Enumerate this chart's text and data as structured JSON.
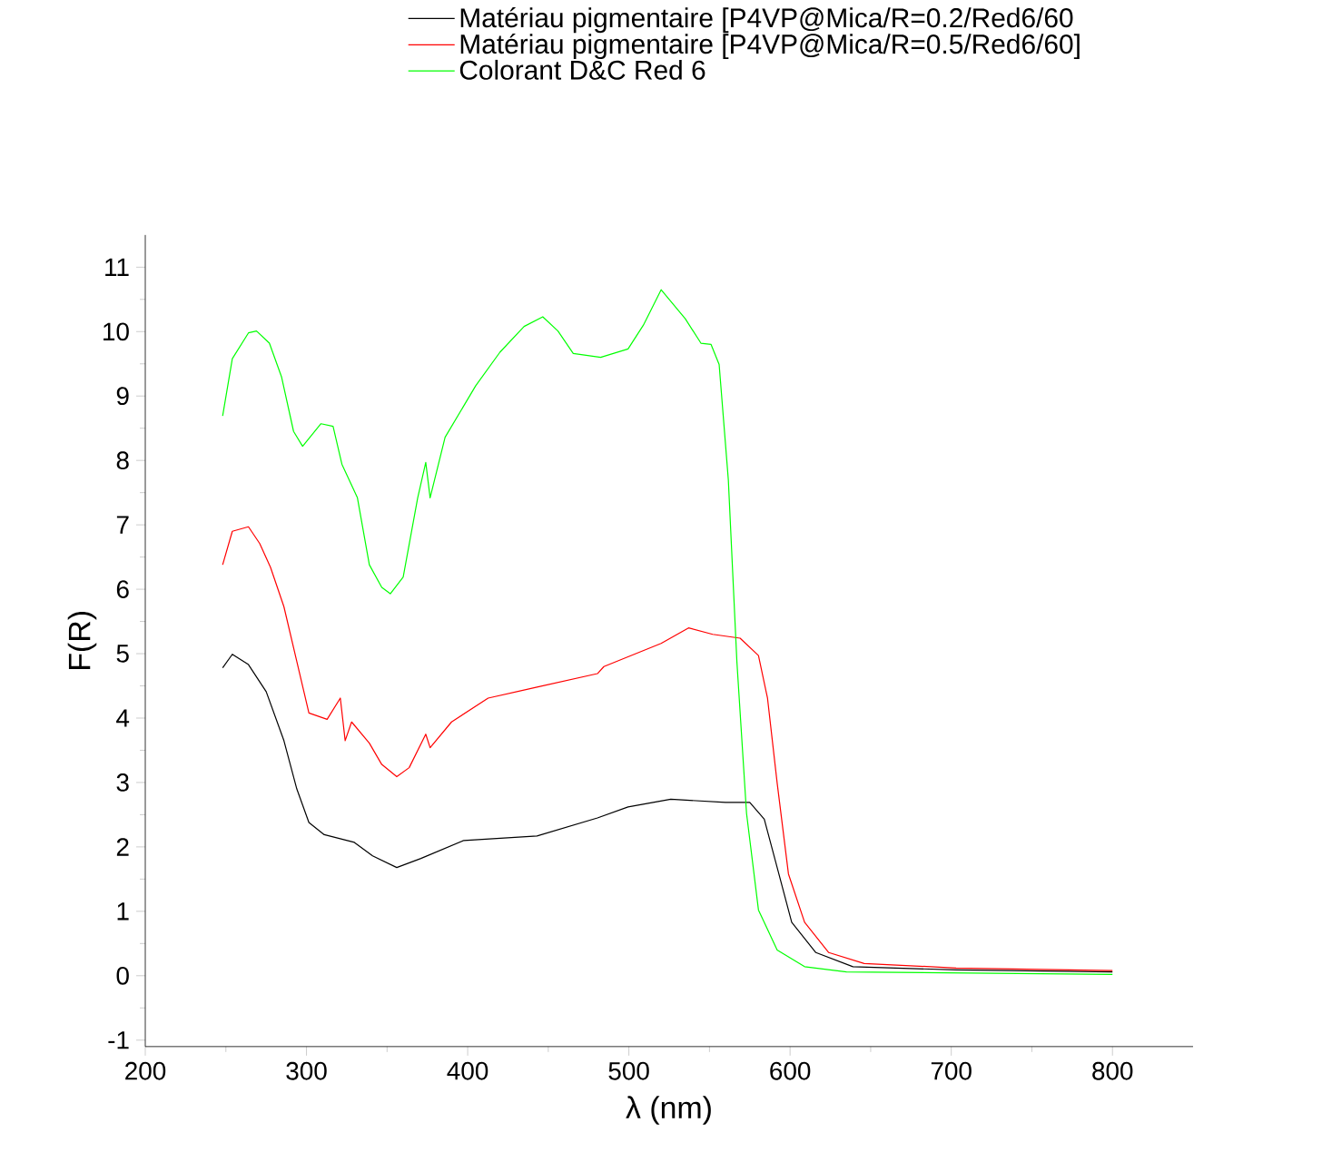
{
  "chart_data": {
    "type": "line",
    "xlabel": "λ (nm)",
    "ylabel": "F(R)",
    "xlim": [
      200,
      850
    ],
    "ylim": [
      -1.1,
      11.5
    ],
    "xticks": [
      200,
      300,
      400,
      500,
      600,
      700,
      800
    ],
    "yticks": [
      -1,
      0,
      1,
      2,
      3,
      4,
      5,
      6,
      7,
      8,
      9,
      10,
      11
    ],
    "grid": false,
    "legend": "top",
    "marker": "none",
    "line_style": "solid",
    "series": [
      {
        "name": "Matériau pigmentaire [P4VP@Mica/R=0.2/Red6/60",
        "color": "#000000",
        "x": [
          248,
          254,
          264,
          275,
          286,
          294,
          301.5,
          311,
          329.7,
          341,
          356,
          371,
          397.6,
          443,
          480.5,
          499.5,
          526,
          560,
          575,
          584,
          592,
          601,
          616,
          639,
          703,
          800
        ],
        "values": [
          4.78,
          4.99,
          4.83,
          4.41,
          3.65,
          2.9,
          2.38,
          2.19,
          2.07,
          1.86,
          1.68,
          1.82,
          2.1,
          2.17,
          2.45,
          2.62,
          2.74,
          2.69,
          2.69,
          2.43,
          1.68,
          0.83,
          0.36,
          0.14,
          0.09,
          0.06
        ]
      },
      {
        "name": "Matériau pigmentaire [P4VP@Mica/R=0.5/Red6/60]",
        "color": "#ff0000",
        "x": [
          248,
          254,
          264,
          271,
          277.7,
          286,
          294,
          301.5,
          312.8,
          321,
          324,
          328,
          339,
          346.7,
          356,
          363.7,
          374,
          376.7,
          390,
          412.7,
          443,
          480.5,
          484.5,
          520,
          537,
          552,
          569,
          580.4,
          586,
          592,
          599,
          609,
          624,
          646,
          703,
          800
        ],
        "values": [
          6.38,
          6.9,
          6.97,
          6.71,
          6.34,
          5.73,
          4.88,
          4.08,
          3.98,
          4.31,
          3.65,
          3.94,
          3.61,
          3.28,
          3.09,
          3.23,
          3.75,
          3.54,
          3.94,
          4.31,
          4.48,
          4.69,
          4.8,
          5.16,
          5.4,
          5.3,
          5.24,
          4.97,
          4.31,
          2.99,
          1.58,
          0.83,
          0.36,
          0.19,
          0.12,
          0.08
        ]
      },
      {
        "name": "Colorant D&C Red 6",
        "color": "#00ff00",
        "x": [
          248,
          254,
          264,
          269,
          277,
          284.5,
          292,
          297.6,
          309,
          316.5,
          322,
          331.6,
          339,
          346.7,
          352,
          360,
          369,
          374,
          376.7,
          386,
          405,
          420,
          435,
          446.6,
          456,
          465.5,
          482.5,
          499.5,
          509,
          520,
          535,
          544.7,
          551,
          556,
          561.7,
          567,
          573,
          580.4,
          592,
          609,
          635,
          800
        ],
        "values": [
          8.69,
          9.58,
          9.98,
          10.01,
          9.82,
          9.3,
          8.45,
          8.22,
          8.57,
          8.53,
          7.94,
          7.42,
          6.38,
          6.03,
          5.93,
          6.19,
          7.42,
          7.97,
          7.42,
          8.36,
          9.16,
          9.68,
          10.08,
          10.23,
          10.01,
          9.66,
          9.6,
          9.73,
          10.1,
          10.65,
          10.2,
          9.82,
          9.8,
          9.49,
          7.7,
          4.88,
          2.52,
          1.02,
          0.4,
          0.14,
          0.06,
          0.02
        ]
      }
    ]
  }
}
